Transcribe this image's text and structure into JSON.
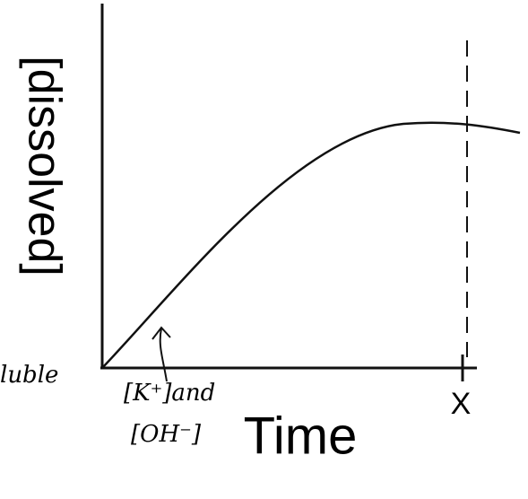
{
  "y_axis_label": "[dissolved]",
  "x_axis_label": "Time",
  "marker_label": "X",
  "curve_label": {
    "line1": "[K⁺]and",
    "line2": "[OH⁻]"
  },
  "left_label": "luble"
}
